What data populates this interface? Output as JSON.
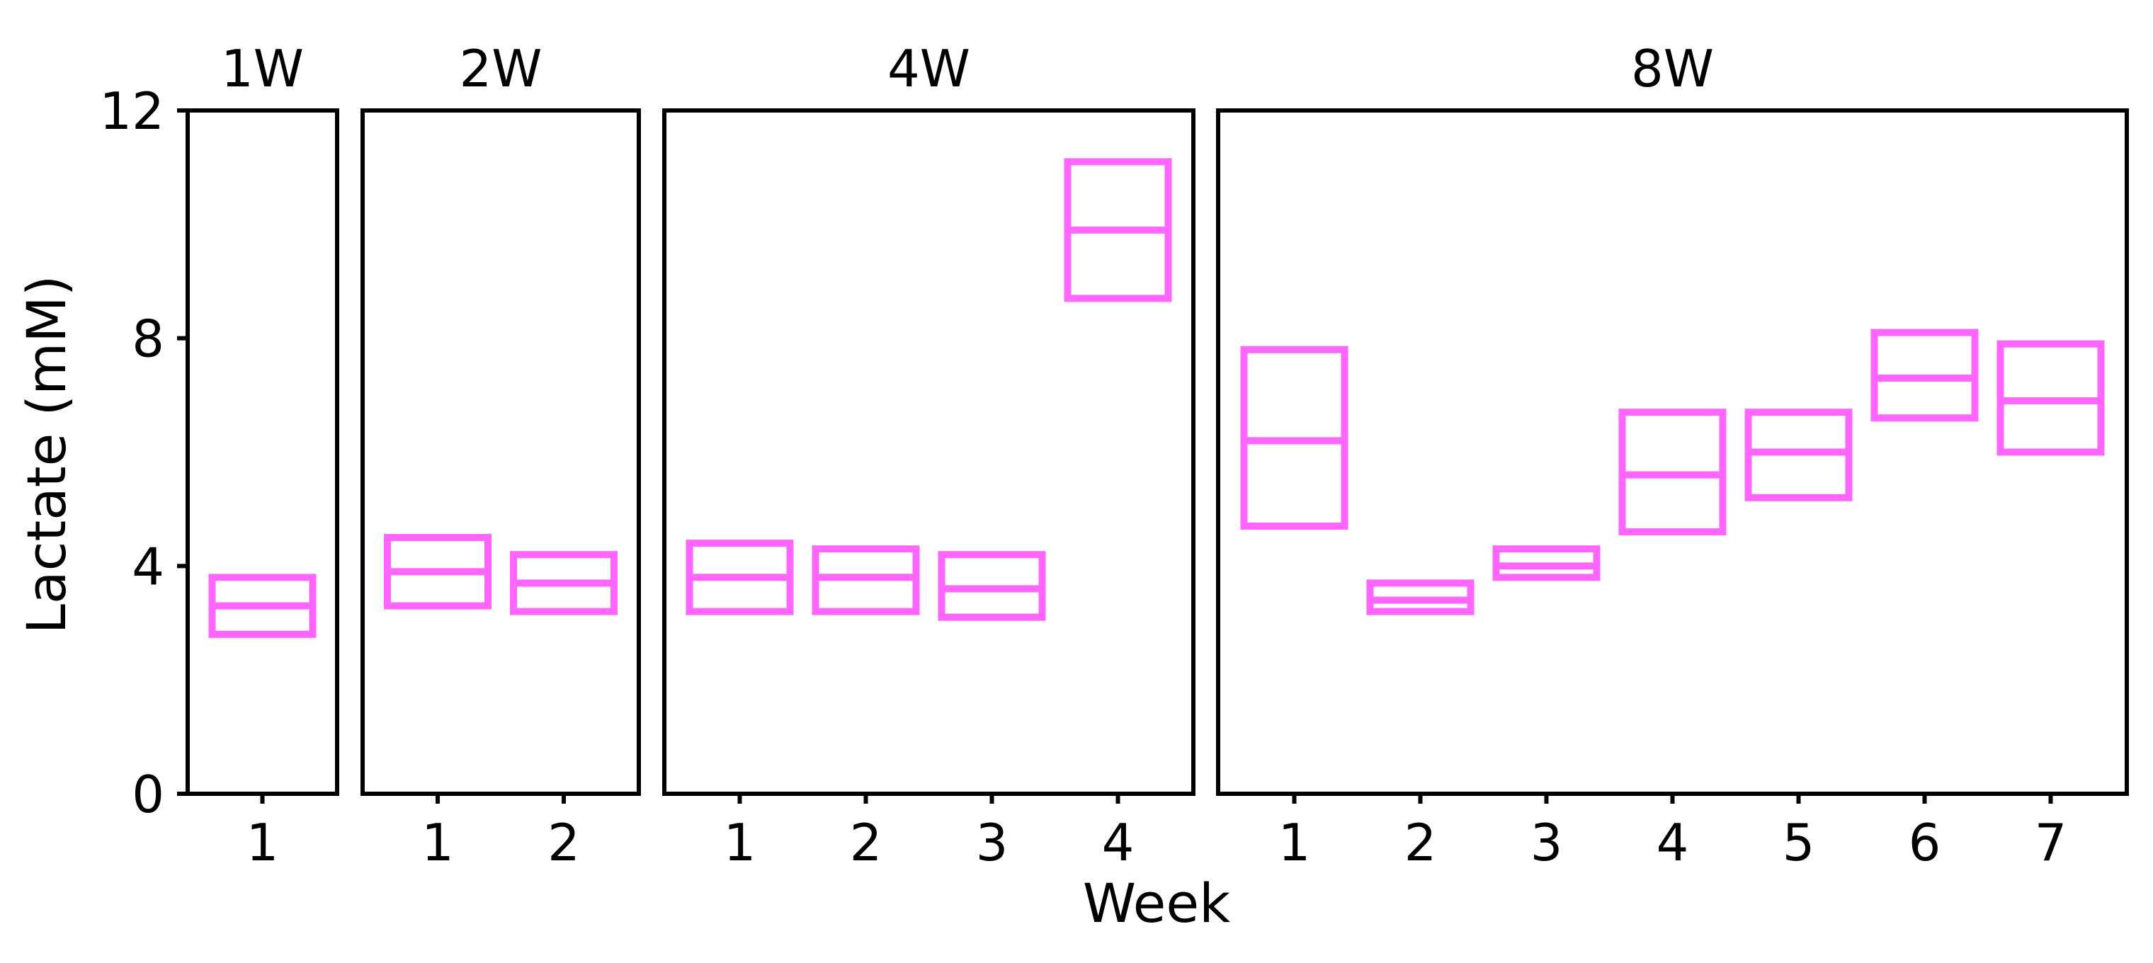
{
  "chart_data": {
    "type": "box",
    "xlabel": "Week",
    "ylabel": "Lactate (mM)",
    "ylim": [
      0,
      12
    ],
    "yticks": [
      0,
      4,
      8,
      12
    ],
    "grid": false,
    "color": "#ff66ff",
    "facets": [
      {
        "title": "1W",
        "boxes": [
          {
            "x": "1",
            "q1": 2.8,
            "median": 3.3,
            "q3": 3.8
          }
        ]
      },
      {
        "title": "2W",
        "boxes": [
          {
            "x": "1",
            "q1": 3.3,
            "median": 3.9,
            "q3": 4.5
          },
          {
            "x": "2",
            "q1": 3.2,
            "median": 3.7,
            "q3": 4.2
          }
        ]
      },
      {
        "title": "4W",
        "boxes": [
          {
            "x": "1",
            "q1": 3.2,
            "median": 3.8,
            "q3": 4.4
          },
          {
            "x": "2",
            "q1": 3.2,
            "median": 3.8,
            "q3": 4.3
          },
          {
            "x": "3",
            "q1": 3.1,
            "median": 3.6,
            "q3": 4.2
          },
          {
            "x": "4",
            "q1": 8.7,
            "median": 9.9,
            "q3": 11.1
          }
        ]
      },
      {
        "title": "8W",
        "boxes": [
          {
            "x": "1",
            "q1": 4.7,
            "median": 6.2,
            "q3": 7.8
          },
          {
            "x": "2",
            "q1": 3.2,
            "median": 3.4,
            "q3": 3.7
          },
          {
            "x": "3",
            "q1": 3.8,
            "median": 4.0,
            "q3": 4.3
          },
          {
            "x": "4",
            "q1": 4.6,
            "median": 5.6,
            "q3": 6.7
          },
          {
            "x": "5",
            "q1": 5.2,
            "median": 6.0,
            "q3": 6.7
          },
          {
            "x": "6",
            "q1": 6.6,
            "median": 7.3,
            "q3": 8.1
          },
          {
            "x": "7",
            "q1": 6.0,
            "median": 6.9,
            "q3": 7.9
          }
        ]
      }
    ]
  }
}
